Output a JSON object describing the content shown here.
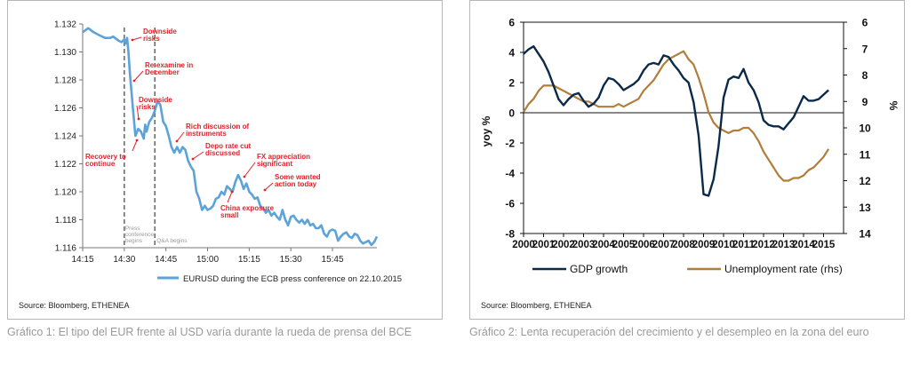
{
  "chart_data": [
    {
      "type": "line",
      "title": "",
      "xlabel": "",
      "ylabel": "",
      "categories": [
        "14:15",
        "14:30",
        "14:45",
        "15:00",
        "15:15",
        "15:30",
        "15:45"
      ],
      "yticks": [
        "1.116",
        "1.118",
        "1.120",
        "1.122",
        "1.124",
        "1.126",
        "1.128",
        "1.130",
        "1.132"
      ],
      "ylim": [
        1.116,
        1.132
      ],
      "xlim_minutes": [
        0,
        106
      ],
      "series": [
        {
          "name": "EURUSD during the ECB press conference on 22.10.2015",
          "color": "#5ba3d9",
          "x": [
            0,
            2,
            4,
            6,
            8,
            10,
            11,
            13,
            14,
            15,
            15.5,
            16,
            16.5,
            17,
            18,
            19,
            20,
            21,
            22,
            22.5,
            23,
            24,
            25,
            26,
            27,
            28,
            29,
            30,
            31,
            32,
            33,
            34,
            35,
            36,
            37,
            38,
            39,
            40,
            41,
            42,
            43,
            44,
            45,
            46,
            47,
            48,
            49,
            50,
            51,
            52,
            53,
            54,
            55,
            56,
            57,
            58,
            59,
            60,
            61,
            62,
            63,
            64,
            65,
            66,
            67,
            68,
            69,
            70,
            71,
            72,
            73,
            74,
            75,
            76,
            77,
            78,
            79,
            80,
            81,
            82,
            83,
            84,
            85,
            86,
            87,
            88,
            89,
            90,
            91,
            92,
            93,
            94,
            95,
            96,
            97,
            98,
            99,
            100,
            101,
            102,
            103,
            104,
            105,
            106
          ],
          "values": [
            1.1314,
            1.1317,
            1.1314,
            1.1312,
            1.131,
            1.131,
            1.1311,
            1.1308,
            1.1307,
            1.1309,
            1.1306,
            1.131,
            1.13,
            1.1285,
            1.1262,
            1.124,
            1.1245,
            1.1243,
            1.1238,
            1.1248,
            1.1243,
            1.125,
            1.1253,
            1.1258,
            1.1265,
            1.1262,
            1.125,
            1.1247,
            1.124,
            1.1232,
            1.1228,
            1.1232,
            1.1228,
            1.1232,
            1.123,
            1.1222,
            1.1218,
            1.1215,
            1.12,
            1.1195,
            1.1187,
            1.119,
            1.1187,
            1.1188,
            1.119,
            1.1195,
            1.1196,
            1.12,
            1.1198,
            1.1204,
            1.1202,
            1.12,
            1.1207,
            1.1212,
            1.1208,
            1.1202,
            1.1206,
            1.12,
            1.1198,
            1.1195,
            1.1196,
            1.119,
            1.1188,
            1.1185,
            1.1187,
            1.1183,
            1.1185,
            1.1182,
            1.118,
            1.1187,
            1.118,
            1.1176,
            1.1182,
            1.1183,
            1.118,
            1.1178,
            1.118,
            1.1177,
            1.118,
            1.1176,
            1.1177,
            1.1174,
            1.1174,
            1.1176,
            1.117,
            1.1168,
            1.1172,
            1.1173,
            1.1172,
            1.1165,
            1.1168,
            1.117,
            1.1171,
            1.1168,
            1.1167,
            1.117,
            1.1169,
            1.1165,
            1.1163,
            1.1164,
            1.1165,
            1.1162,
            1.1164,
            1.1168
          ]
        }
      ],
      "vlines": [
        {
          "x": 15,
          "label": "Press conference begins"
        },
        {
          "x": 26,
          "label": "Q&A begins"
        }
      ],
      "annotations": [
        {
          "text": "Downside risks",
          "x": 15,
          "y": 1.131
        },
        {
          "text": "Re-examine in December",
          "x": 16,
          "y": 1.1285
        },
        {
          "text": "Downside risks",
          "x": 19,
          "y": 1.1248
        },
        {
          "text": "Recovery to continue",
          "x": 17,
          "y": 1.124
        },
        {
          "text": "Rich discussion of instruments",
          "x": 32,
          "y": 1.1242
        },
        {
          "text": "Depo rate cut discussed",
          "x": 40,
          "y": 1.1228
        },
        {
          "text": "FX appreciation significant",
          "x": 59,
          "y": 1.1212
        },
        {
          "text": "China exposure small",
          "x": 54,
          "y": 1.12
        },
        {
          "text": "Some wanted action today",
          "x": 65,
          "y": 1.1205
        }
      ],
      "legend": "bottom",
      "grid": false
    },
    {
      "type": "line",
      "title": "",
      "xlabel": "",
      "ylabel": "yoy %",
      "ylabel_right": "%",
      "xticks": [
        "2000",
        "2001",
        "2002",
        "2003",
        "2004",
        "2005",
        "2006",
        "2007",
        "2008",
        "2009",
        "2010",
        "2011",
        "2012",
        "2013",
        "2014",
        "2015"
      ],
      "yticks_left": [
        "6",
        "4",
        "2",
        "0",
        "-2",
        "-4",
        "-6",
        "-8"
      ],
      "yticks_right": [
        "6",
        "7",
        "8",
        "9",
        "10",
        "11",
        "12",
        "13",
        "14"
      ],
      "ylim": [
        -8,
        6
      ],
      "ylim_right_inverted": [
        6,
        14
      ],
      "xlim": [
        2000,
        2016
      ],
      "series": [
        {
          "name": "GDP growth",
          "axis": "left",
          "color": "#0b2a4a",
          "x": [
            2000,
            2000.25,
            2000.5,
            2000.75,
            2001,
            2001.25,
            2001.5,
            2001.75,
            2002,
            2002.25,
            2002.5,
            2002.75,
            2003,
            2003.25,
            2003.5,
            2003.75,
            2004,
            2004.25,
            2004.5,
            2004.75,
            2005,
            2005.25,
            2005.5,
            2005.75,
            2006,
            2006.25,
            2006.5,
            2006.75,
            2007,
            2007.25,
            2007.5,
            2007.75,
            2008,
            2008.25,
            2008.5,
            2008.75,
            2009,
            2009.25,
            2009.5,
            2009.75,
            2010,
            2010.25,
            2010.5,
            2010.75,
            2011,
            2011.25,
            2011.5,
            2011.75,
            2012,
            2012.25,
            2012.5,
            2012.75,
            2013,
            2013.25,
            2013.5,
            2013.75,
            2014,
            2014.25,
            2014.5,
            2014.75,
            2015,
            2015.25
          ],
          "values": [
            3.9,
            4.2,
            4.4,
            3.9,
            3.4,
            2.7,
            1.8,
            0.9,
            0.5,
            0.9,
            1.2,
            1.3,
            0.8,
            0.4,
            0.6,
            1.0,
            1.8,
            2.3,
            2.2,
            1.9,
            1.5,
            1.7,
            1.9,
            2.2,
            2.8,
            3.2,
            3.3,
            3.2,
            3.8,
            3.7,
            3.2,
            2.8,
            2.3,
            2.0,
            0.7,
            -1.5,
            -5.4,
            -5.5,
            -4.4,
            -2.2,
            1.0,
            2.2,
            2.4,
            2.3,
            2.9,
            2.0,
            1.5,
            0.7,
            -0.5,
            -0.8,
            -0.9,
            -0.9,
            -1.1,
            -0.7,
            -0.3,
            0.4,
            1.1,
            0.8,
            0.8,
            0.9,
            1.2,
            1.5
          ]
        },
        {
          "name": "Unemployment rate (rhs)",
          "axis": "right",
          "color": "#b07e3a",
          "x": [
            2000,
            2000.25,
            2000.5,
            2000.75,
            2001,
            2001.25,
            2001.5,
            2001.75,
            2002,
            2002.25,
            2002.5,
            2002.75,
            2003,
            2003.25,
            2003.5,
            2003.75,
            2004,
            2004.25,
            2004.5,
            2004.75,
            2005,
            2005.25,
            2005.5,
            2005.75,
            2006,
            2006.25,
            2006.5,
            2006.75,
            2007,
            2007.25,
            2007.5,
            2007.75,
            2008,
            2008.25,
            2008.5,
            2008.75,
            2009,
            2009.25,
            2009.5,
            2009.75,
            2010,
            2010.25,
            2010.5,
            2010.75,
            2011,
            2011.25,
            2011.5,
            2011.75,
            2012,
            2012.25,
            2012.5,
            2012.75,
            2013,
            2013.25,
            2013.5,
            2013.75,
            2014,
            2014.25,
            2014.5,
            2014.75,
            2015,
            2015.25
          ],
          "values": [
            9.4,
            9.1,
            8.9,
            8.6,
            8.4,
            8.4,
            8.4,
            8.5,
            8.6,
            8.7,
            8.8,
            8.9,
            9.0,
            9.0,
            9.1,
            9.2,
            9.2,
            9.2,
            9.2,
            9.1,
            9.2,
            9.1,
            9.0,
            8.9,
            8.6,
            8.4,
            8.2,
            7.9,
            7.6,
            7.4,
            7.3,
            7.2,
            7.1,
            7.4,
            7.6,
            8.1,
            8.7,
            9.4,
            9.8,
            10.0,
            10.1,
            10.2,
            10.1,
            10.1,
            10.0,
            10.0,
            10.2,
            10.5,
            10.9,
            11.2,
            11.5,
            11.8,
            12.0,
            12.0,
            11.9,
            11.9,
            11.8,
            11.6,
            11.5,
            11.3,
            11.1,
            10.8
          ]
        }
      ],
      "legend": "bottom",
      "grid": false
    }
  ],
  "panel1": {
    "source": "Source: Bloomberg, ETHENEA",
    "vline_label_1a": "Press",
    "vline_label_1b": "conference",
    "vline_label_1c": "begins",
    "vline_label_2": "Q&A begins",
    "legend_label": "EURUSD during the ECB press conference on 22.10.2015"
  },
  "panel2": {
    "source": "Source: Bloomberg, ETHENEA",
    "legend_gdp": "GDP growth",
    "legend_unemp": "Unemployment rate (rhs)",
    "ylabel_left": "yoy %",
    "ylabel_right": "%"
  },
  "captions": {
    "caption1": "Gráfico 1: El tipo del EUR frente al USD varía durante la rueda de prensa del BCE",
    "caption2": "Gráfico 2: Lenta recuperación del crecimiento y el desempleo en la zona del euro"
  },
  "colors": {
    "eurusd_line": "#5ba3d9",
    "annotation_red": "#e2232a",
    "gdp_line": "#0b2a4a",
    "unemp_line": "#b07e3a",
    "caption_gray": "#9a9a9a"
  }
}
